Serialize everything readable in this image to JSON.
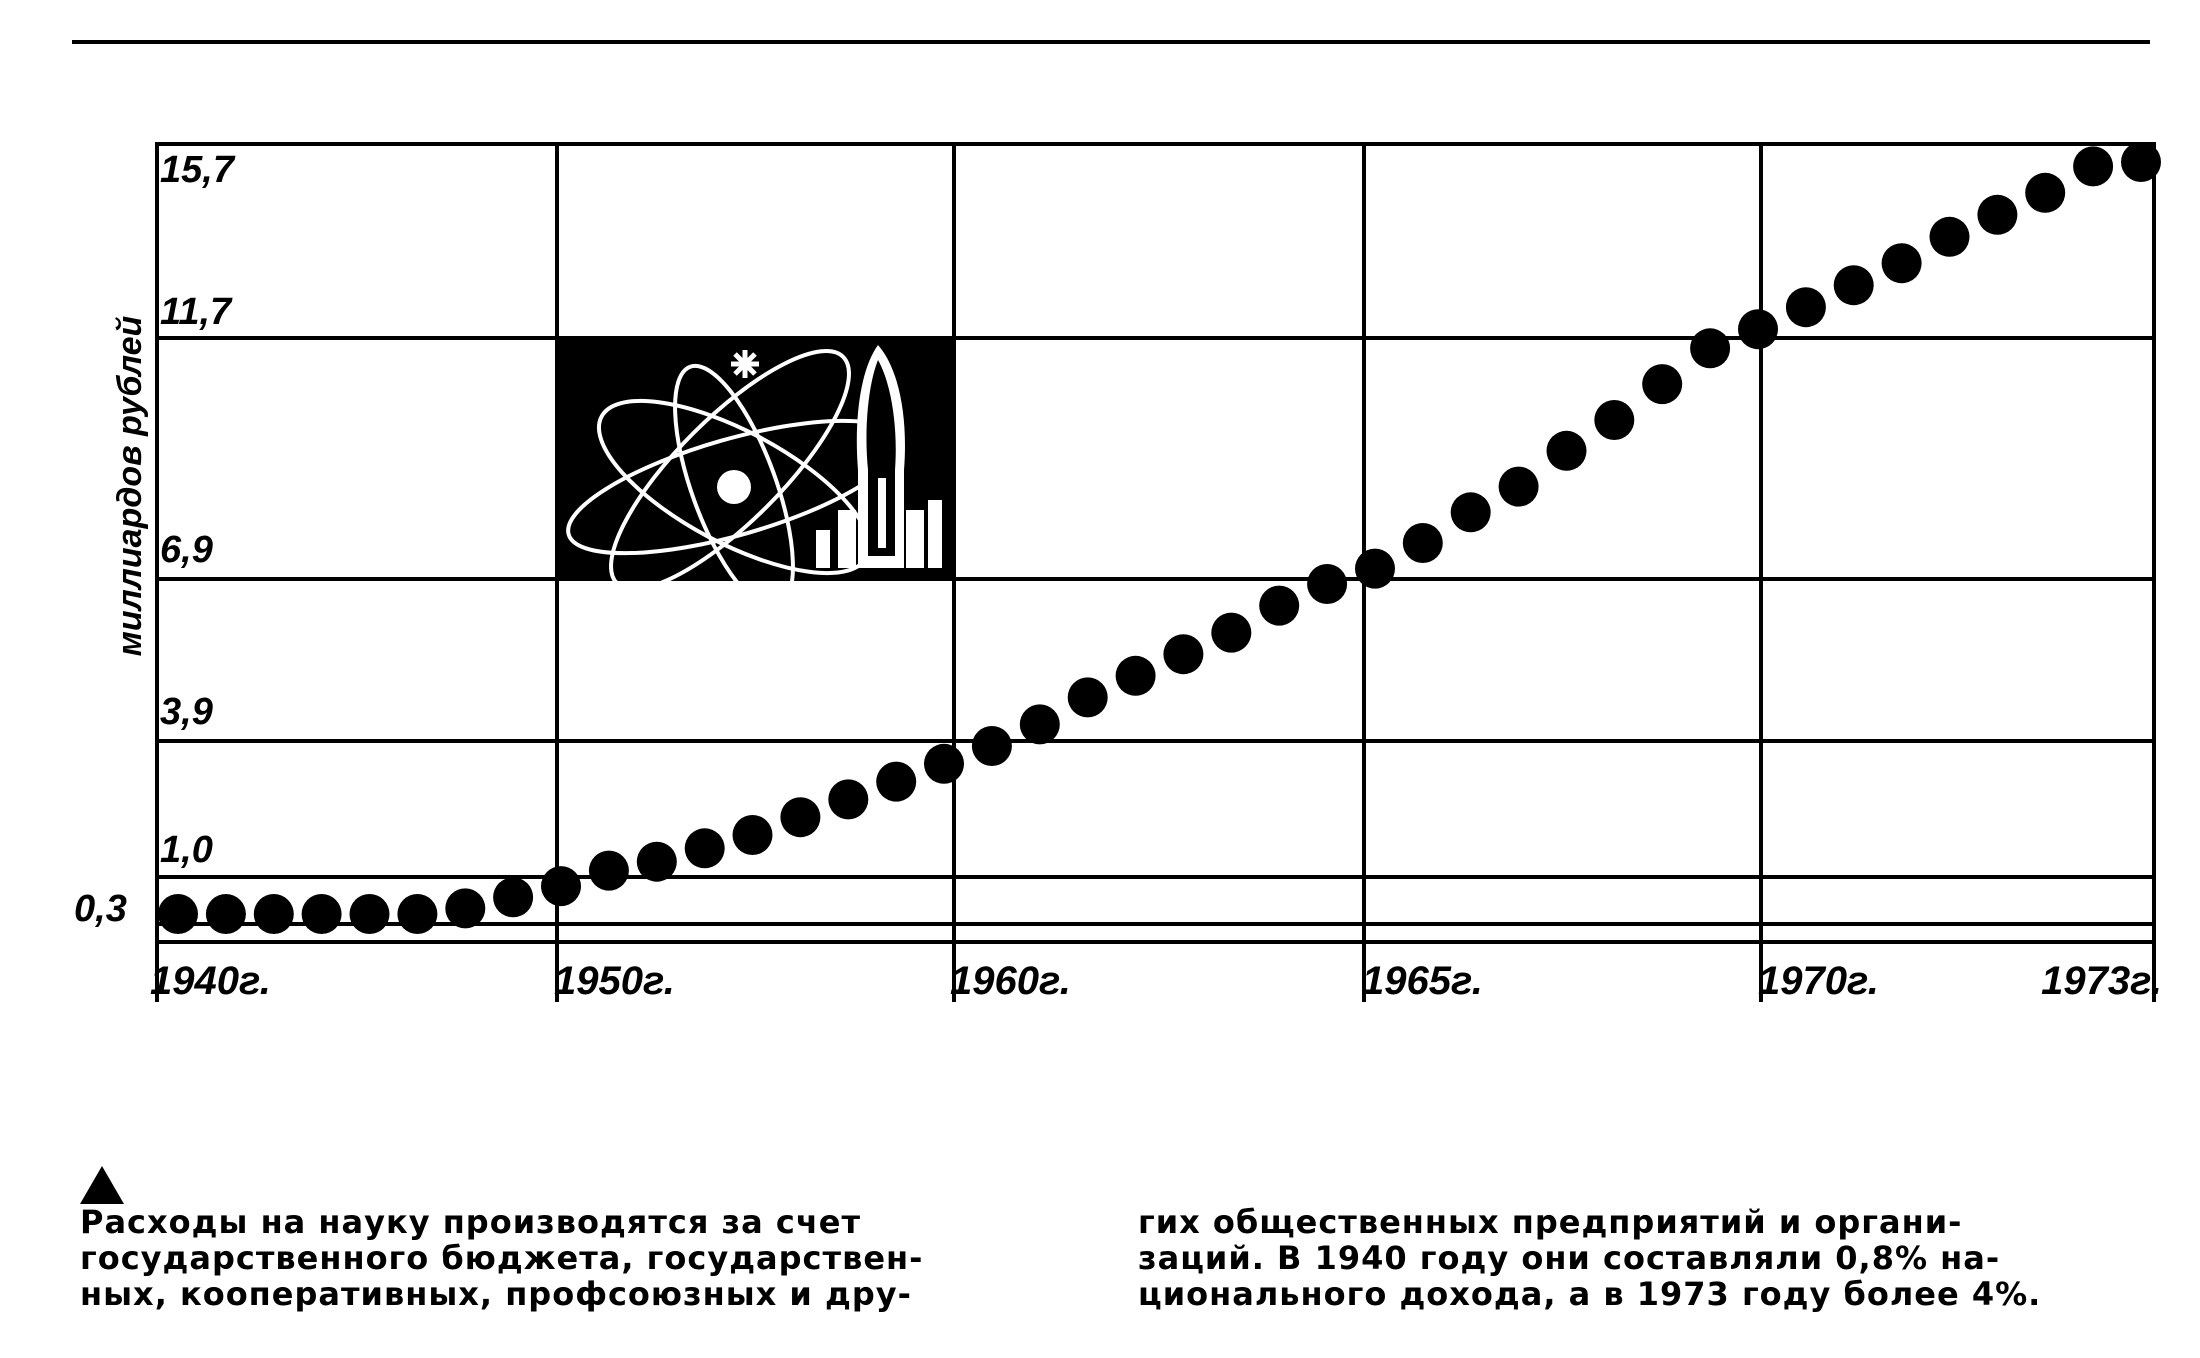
{
  "chart_data": {
    "type": "scatter",
    "ylabel": "миллиардов рублей",
    "x_tick_labels": [
      "1940г.",
      "1950г.",
      "1960г.",
      "1965г.",
      "1970г.",
      "1973г."
    ],
    "y_tick_labels": [
      "0,3",
      "1,0",
      "3,9",
      "6,9",
      "11,7",
      "15,7"
    ],
    "grid": true,
    "points": [
      {
        "x": 1940,
        "y": 0.3
      },
      {
        "x": 1941,
        "y": 0.3
      },
      {
        "x": 1942,
        "y": 0.3
      },
      {
        "x": 1943,
        "y": 0.3
      },
      {
        "x": 1944,
        "y": 0.3
      },
      {
        "x": 1945,
        "y": 0.3
      },
      {
        "x": 1946,
        "y": 0.4
      },
      {
        "x": 1947,
        "y": 0.6
      },
      {
        "x": 1948,
        "y": 0.8
      },
      {
        "x": 1949,
        "y": 1.1
      },
      {
        "x": 1950,
        "y": 1.3
      },
      {
        "x": 1951,
        "y": 1.6
      },
      {
        "x": 1952,
        "y": 1.9
      },
      {
        "x": 1953,
        "y": 2.3
      },
      {
        "x": 1954,
        "y": 2.7
      },
      {
        "x": 1955,
        "y": 3.1
      },
      {
        "x": 1956,
        "y": 3.5
      },
      {
        "x": 1957,
        "y": 3.9
      },
      {
        "x": 1958,
        "y": 4.3
      },
      {
        "x": 1959,
        "y": 4.8
      },
      {
        "x": 1960,
        "y": 5.2
      },
      {
        "x": 1961,
        "y": 5.6
      },
      {
        "x": 1962,
        "y": 6.0
      },
      {
        "x": 1963,
        "y": 6.5
      },
      {
        "x": 1964,
        "y": 6.9
      },
      {
        "x": 1965,
        "y": 7.2
      },
      {
        "x": 1966,
        "y": 7.7
      },
      {
        "x": 1967,
        "y": 8.3
      },
      {
        "x": 1968,
        "y": 8.8
      },
      {
        "x": 1969,
        "y": 9.5
      },
      {
        "x": 1970,
        "y": 10.1
      },
      {
        "x": 1971,
        "y": 10.8
      },
      {
        "x": 1972,
        "y": 11.5
      },
      {
        "x": 1973,
        "y": 11.9
      },
      {
        "x": 1974,
        "y": 12.4
      },
      {
        "x": 1975,
        "y": 12.9
      },
      {
        "x": 1976,
        "y": 13.4
      },
      {
        "x": 1977,
        "y": 14.0
      },
      {
        "x": 1978,
        "y": 14.5
      },
      {
        "x": 1979,
        "y": 15.0
      },
      {
        "x": 1980,
        "y": 15.6
      },
      {
        "x": 1981,
        "y": 15.7
      }
    ]
  },
  "caption": {
    "left_lines": [
      "Расходы на науку производятся за счет",
      "государственного бюджета, государствен-",
      "ных, кооперативных, профсоюзных и дру-"
    ],
    "right_lines": [
      "гих общественных предприятий и органи-",
      "заций. В 1940 году они составляли 0,8% на-",
      "ционального дохода, а в 1973 году более 4%."
    ]
  },
  "icons": {
    "illustration": "atom-rocket-illustration",
    "caption_marker": "triangle-up-icon"
  },
  "colors": {
    "ink": "#000000",
    "paper": "#ffffff"
  }
}
